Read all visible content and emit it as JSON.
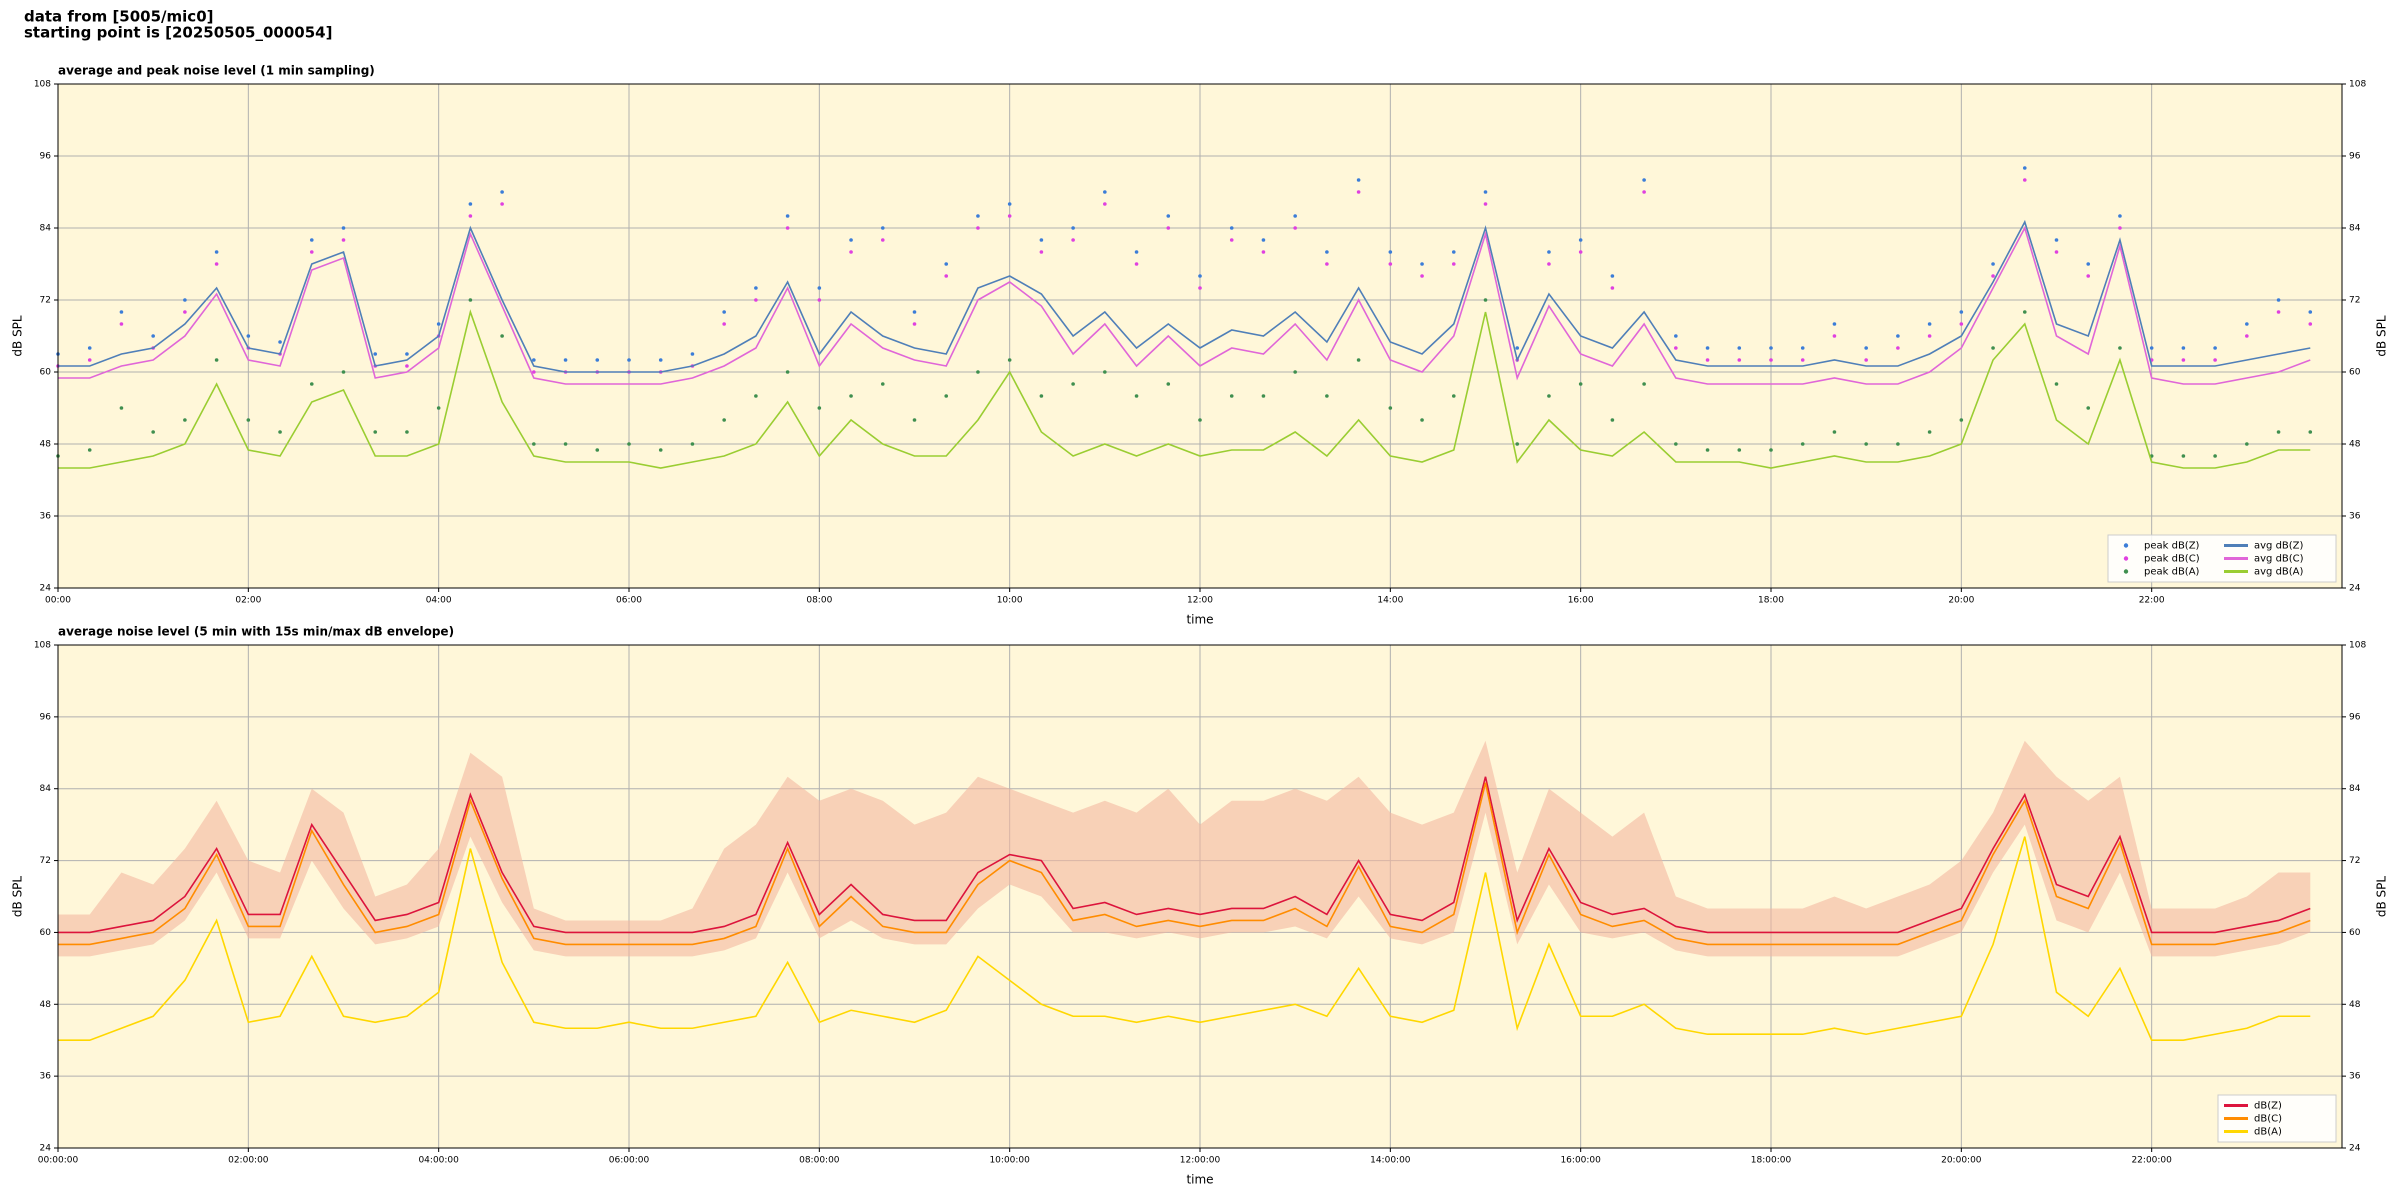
{
  "header": {
    "line1": "data from [5005/mic0]",
    "line2": "starting point is [20250505_000054]"
  },
  "chart_data": [
    {
      "type": "line",
      "title": "average and peak noise level (1 min sampling)",
      "xlabel": "time",
      "ylabel": "dB SPL",
      "x": [
        "00:00",
        "00:20",
        "00:40",
        "01:00",
        "01:20",
        "01:40",
        "02:00",
        "02:20",
        "02:40",
        "03:00",
        "03:20",
        "03:40",
        "04:00",
        "04:20",
        "04:40",
        "05:00",
        "05:20",
        "05:40",
        "06:00",
        "06:20",
        "06:40",
        "07:00",
        "07:20",
        "07:40",
        "08:00",
        "08:20",
        "08:40",
        "09:00",
        "09:20",
        "09:40",
        "10:00",
        "10:20",
        "10:40",
        "11:00",
        "11:20",
        "11:40",
        "12:00",
        "12:20",
        "12:40",
        "13:00",
        "13:20",
        "13:40",
        "14:00",
        "14:20",
        "14:40",
        "15:00",
        "15:20",
        "15:40",
        "16:00",
        "16:20",
        "16:40",
        "17:00",
        "17:20",
        "17:40",
        "18:00",
        "18:20",
        "18:40",
        "19:00",
        "19:20",
        "19:40",
        "20:00",
        "20:20",
        "20:40",
        "21:00",
        "21:20",
        "21:40",
        "22:00",
        "22:20",
        "22:40",
        "23:00",
        "23:20",
        "23:40"
      ],
      "xlim": [
        "00:00",
        "24:00"
      ],
      "xticks": [
        "00:00",
        "02:00",
        "04:00",
        "06:00",
        "08:00",
        "10:00",
        "12:00",
        "14:00",
        "16:00",
        "18:00",
        "20:00",
        "22:00"
      ],
      "ylim": [
        24,
        108
      ],
      "yticks": [
        24,
        36,
        48,
        60,
        72,
        84,
        96,
        108
      ],
      "grid": true,
      "legend": "lower right",
      "legend_columns": 2,
      "series": [
        {
          "name": "peak dB(Z)",
          "type": "scatter",
          "color": "#3b7dd8",
          "values": [
            63,
            64,
            70,
            66,
            72,
            80,
            66,
            65,
            82,
            84,
            63,
            63,
            68,
            88,
            90,
            62,
            62,
            62,
            62,
            62,
            63,
            70,
            74,
            86,
            74,
            82,
            84,
            70,
            78,
            86,
            88,
            82,
            84,
            90,
            80,
            86,
            76,
            84,
            82,
            86,
            80,
            92,
            80,
            78,
            80,
            90,
            64,
            80,
            82,
            76,
            92,
            66,
            64,
            64,
            64,
            64,
            68,
            64,
            66,
            68,
            70,
            78,
            94,
            82,
            78,
            86,
            64,
            64,
            64,
            68,
            72,
            70
          ]
        },
        {
          "name": "peak dB(C)",
          "type": "scatter",
          "color": "#e040e0",
          "values": [
            61,
            62,
            68,
            64,
            70,
            78,
            64,
            63,
            80,
            82,
            61,
            61,
            66,
            86,
            88,
            60,
            60,
            60,
            60,
            60,
            61,
            68,
            72,
            84,
            72,
            80,
            82,
            68,
            76,
            84,
            86,
            80,
            82,
            88,
            78,
            84,
            74,
            82,
            80,
            84,
            78,
            90,
            78,
            76,
            78,
            88,
            62,
            78,
            80,
            74,
            90,
            64,
            62,
            62,
            62,
            62,
            66,
            62,
            64,
            66,
            68,
            76,
            92,
            80,
            76,
            84,
            62,
            62,
            62,
            66,
            70,
            68
          ]
        },
        {
          "name": "peak dB(A)",
          "type": "scatter",
          "color": "#3f8f4f",
          "values": [
            46,
            47,
            54,
            50,
            52,
            62,
            52,
            50,
            58,
            60,
            50,
            50,
            54,
            72,
            66,
            48,
            48,
            47,
            48,
            47,
            48,
            52,
            56,
            60,
            54,
            56,
            58,
            52,
            56,
            60,
            62,
            56,
            58,
            60,
            56,
            58,
            52,
            56,
            56,
            60,
            56,
            62,
            54,
            52,
            56,
            72,
            48,
            56,
            58,
            52,
            58,
            48,
            47,
            47,
            47,
            48,
            50,
            48,
            48,
            50,
            52,
            64,
            70,
            58,
            54,
            64,
            46,
            46,
            46,
            48,
            50,
            50
          ]
        },
        {
          "name": "avg dB(Z)",
          "type": "line",
          "color": "#4f7fb8",
          "values": [
            61,
            61,
            63,
            64,
            68,
            74,
            64,
            63,
            78,
            80,
            61,
            62,
            66,
            84,
            72,
            61,
            60,
            60,
            60,
            60,
            61,
            63,
            66,
            75,
            63,
            70,
            66,
            64,
            63,
            74,
            76,
            73,
            66,
            70,
            64,
            68,
            64,
            67,
            66,
            70,
            65,
            74,
            65,
            63,
            68,
            84,
            62,
            73,
            66,
            64,
            70,
            62,
            61,
            61,
            61,
            61,
            62,
            61,
            61,
            63,
            66,
            75,
            85,
            68,
            66,
            82,
            61,
            61,
            61,
            62,
            63,
            64
          ]
        },
        {
          "name": "avg dB(C)",
          "type": "line",
          "color": "#e066d8",
          "values": [
            59,
            59,
            61,
            62,
            66,
            73,
            62,
            61,
            77,
            79,
            59,
            60,
            64,
            83,
            71,
            59,
            58,
            58,
            58,
            58,
            59,
            61,
            64,
            74,
            61,
            68,
            64,
            62,
            61,
            72,
            75,
            71,
            63,
            68,
            61,
            66,
            61,
            64,
            63,
            68,
            62,
            72,
            62,
            60,
            66,
            83,
            59,
            71,
            63,
            61,
            68,
            59,
            58,
            58,
            58,
            58,
            59,
            58,
            58,
            60,
            64,
            74,
            84,
            66,
            63,
            81,
            59,
            58,
            58,
            59,
            60,
            62
          ]
        },
        {
          "name": "avg dB(A)",
          "type": "line",
          "color": "#9acd32",
          "values": [
            44,
            44,
            45,
            46,
            48,
            58,
            47,
            46,
            55,
            57,
            46,
            46,
            48,
            70,
            55,
            46,
            45,
            45,
            45,
            44,
            45,
            46,
            48,
            55,
            46,
            52,
            48,
            46,
            46,
            52,
            60,
            50,
            46,
            48,
            46,
            48,
            46,
            47,
            47,
            50,
            46,
            52,
            46,
            45,
            47,
            70,
            45,
            52,
            47,
            46,
            50,
            45,
            45,
            45,
            44,
            45,
            46,
            45,
            45,
            46,
            48,
            62,
            68,
            52,
            48,
            62,
            45,
            44,
            44,
            45,
            47,
            47
          ]
        }
      ]
    },
    {
      "type": "line",
      "title": "average noise level (5 min with 15s min/max dB envelope)",
      "xlabel": "time",
      "ylabel": "dB SPL",
      "x": [
        "00:00:00",
        "00:20:00",
        "00:40:00",
        "01:00:00",
        "01:20:00",
        "01:40:00",
        "02:00:00",
        "02:20:00",
        "02:40:00",
        "03:00:00",
        "03:20:00",
        "03:40:00",
        "04:00:00",
        "04:20:00",
        "04:40:00",
        "05:00:00",
        "05:20:00",
        "05:40:00",
        "06:00:00",
        "06:20:00",
        "06:40:00",
        "07:00:00",
        "07:20:00",
        "07:40:00",
        "08:00:00",
        "08:20:00",
        "08:40:00",
        "09:00:00",
        "09:20:00",
        "09:40:00",
        "10:00:00",
        "10:20:00",
        "10:40:00",
        "11:00:00",
        "11:20:00",
        "11:40:00",
        "12:00:00",
        "12:20:00",
        "12:40:00",
        "13:00:00",
        "13:20:00",
        "13:40:00",
        "14:00:00",
        "14:20:00",
        "14:40:00",
        "15:00:00",
        "15:20:00",
        "15:40:00",
        "16:00:00",
        "16:20:00",
        "16:40:00",
        "17:00:00",
        "17:20:00",
        "17:40:00",
        "18:00:00",
        "18:20:00",
        "18:40:00",
        "19:00:00",
        "19:20:00",
        "19:40:00",
        "20:00:00",
        "20:20:00",
        "20:40:00",
        "21:00:00",
        "21:20:00",
        "21:40:00",
        "22:00:00",
        "22:20:00",
        "22:40:00",
        "23:00:00",
        "23:20:00",
        "23:40:00"
      ],
      "xlim": [
        "00:00:00",
        "24:00:00"
      ],
      "xticks": [
        "00:00:00",
        "02:00:00",
        "04:00:00",
        "06:00:00",
        "08:00:00",
        "10:00:00",
        "12:00:00",
        "14:00:00",
        "16:00:00",
        "18:00:00",
        "20:00:00",
        "22:00:00"
      ],
      "ylim": [
        24,
        108
      ],
      "yticks": [
        24,
        36,
        48,
        60,
        72,
        84,
        96,
        108
      ],
      "grid": true,
      "legend": "lower right",
      "legend_columns": 1,
      "band": {
        "color": "#f4b8a0",
        "low": [
          56,
          56,
          57,
          58,
          62,
          70,
          59,
          59,
          72,
          64,
          58,
          59,
          61,
          76,
          65,
          57,
          56,
          56,
          56,
          56,
          56,
          57,
          59,
          70,
          59,
          62,
          59,
          58,
          58,
          64,
          68,
          66,
          60,
          60,
          59,
          60,
          59,
          60,
          60,
          61,
          59,
          66,
          59,
          58,
          60,
          80,
          58,
          68,
          60,
          59,
          60,
          57,
          56,
          56,
          56,
          56,
          56,
          56,
          56,
          58,
          60,
          70,
          78,
          62,
          60,
          70,
          56,
          56,
          56,
          57,
          58,
          60
        ],
        "high": [
          63,
          63,
          70,
          68,
          74,
          82,
          72,
          70,
          84,
          80,
          66,
          68,
          74,
          90,
          86,
          64,
          62,
          62,
          62,
          62,
          64,
          74,
          78,
          86,
          82,
          84,
          82,
          78,
          80,
          86,
          84,
          82,
          80,
          82,
          80,
          84,
          78,
          82,
          82,
          84,
          82,
          86,
          80,
          78,
          80,
          92,
          70,
          84,
          80,
          76,
          80,
          66,
          64,
          64,
          64,
          64,
          66,
          64,
          66,
          68,
          72,
          80,
          92,
          86,
          82,
          86,
          64,
          64,
          64,
          66,
          70,
          70
        ]
      },
      "series": [
        {
          "name": "dB(Z)",
          "type": "line",
          "color": "#dc143c",
          "values": [
            60,
            60,
            61,
            62,
            66,
            74,
            63,
            63,
            78,
            70,
            62,
            63,
            65,
            83,
            70,
            61,
            60,
            60,
            60,
            60,
            60,
            61,
            63,
            75,
            63,
            68,
            63,
            62,
            62,
            70,
            73,
            72,
            64,
            65,
            63,
            64,
            63,
            64,
            64,
            66,
            63,
            72,
            63,
            62,
            65,
            86,
            62,
            74,
            65,
            63,
            64,
            61,
            60,
            60,
            60,
            60,
            60,
            60,
            60,
            62,
            64,
            74,
            83,
            68,
            66,
            76,
            60,
            60,
            60,
            61,
            62,
            64
          ]
        },
        {
          "name": "dB(C)",
          "type": "line",
          "color": "#ff8c00",
          "values": [
            58,
            58,
            59,
            60,
            64,
            73,
            61,
            61,
            77,
            68,
            60,
            61,
            63,
            82,
            69,
            59,
            58,
            58,
            58,
            58,
            58,
            59,
            61,
            74,
            61,
            66,
            61,
            60,
            60,
            68,
            72,
            70,
            62,
            63,
            61,
            62,
            61,
            62,
            62,
            64,
            61,
            71,
            61,
            60,
            63,
            85,
            60,
            73,
            63,
            61,
            62,
            59,
            58,
            58,
            58,
            58,
            58,
            58,
            58,
            60,
            62,
            73,
            82,
            66,
            64,
            75,
            58,
            58,
            58,
            59,
            60,
            62
          ]
        },
        {
          "name": "dB(A)",
          "type": "line",
          "color": "#ffd700",
          "values": [
            42,
            42,
            44,
            46,
            52,
            62,
            45,
            46,
            56,
            46,
            45,
            46,
            50,
            74,
            55,
            45,
            44,
            44,
            45,
            44,
            44,
            45,
            46,
            55,
            45,
            47,
            46,
            45,
            47,
            56,
            52,
            48,
            46,
            46,
            45,
            46,
            45,
            46,
            47,
            48,
            46,
            54,
            46,
            45,
            47,
            70,
            44,
            58,
            46,
            46,
            48,
            44,
            43,
            43,
            43,
            43,
            44,
            43,
            44,
            45,
            46,
            58,
            76,
            50,
            46,
            54,
            42,
            42,
            43,
            44,
            46,
            46
          ]
        }
      ]
    }
  ]
}
